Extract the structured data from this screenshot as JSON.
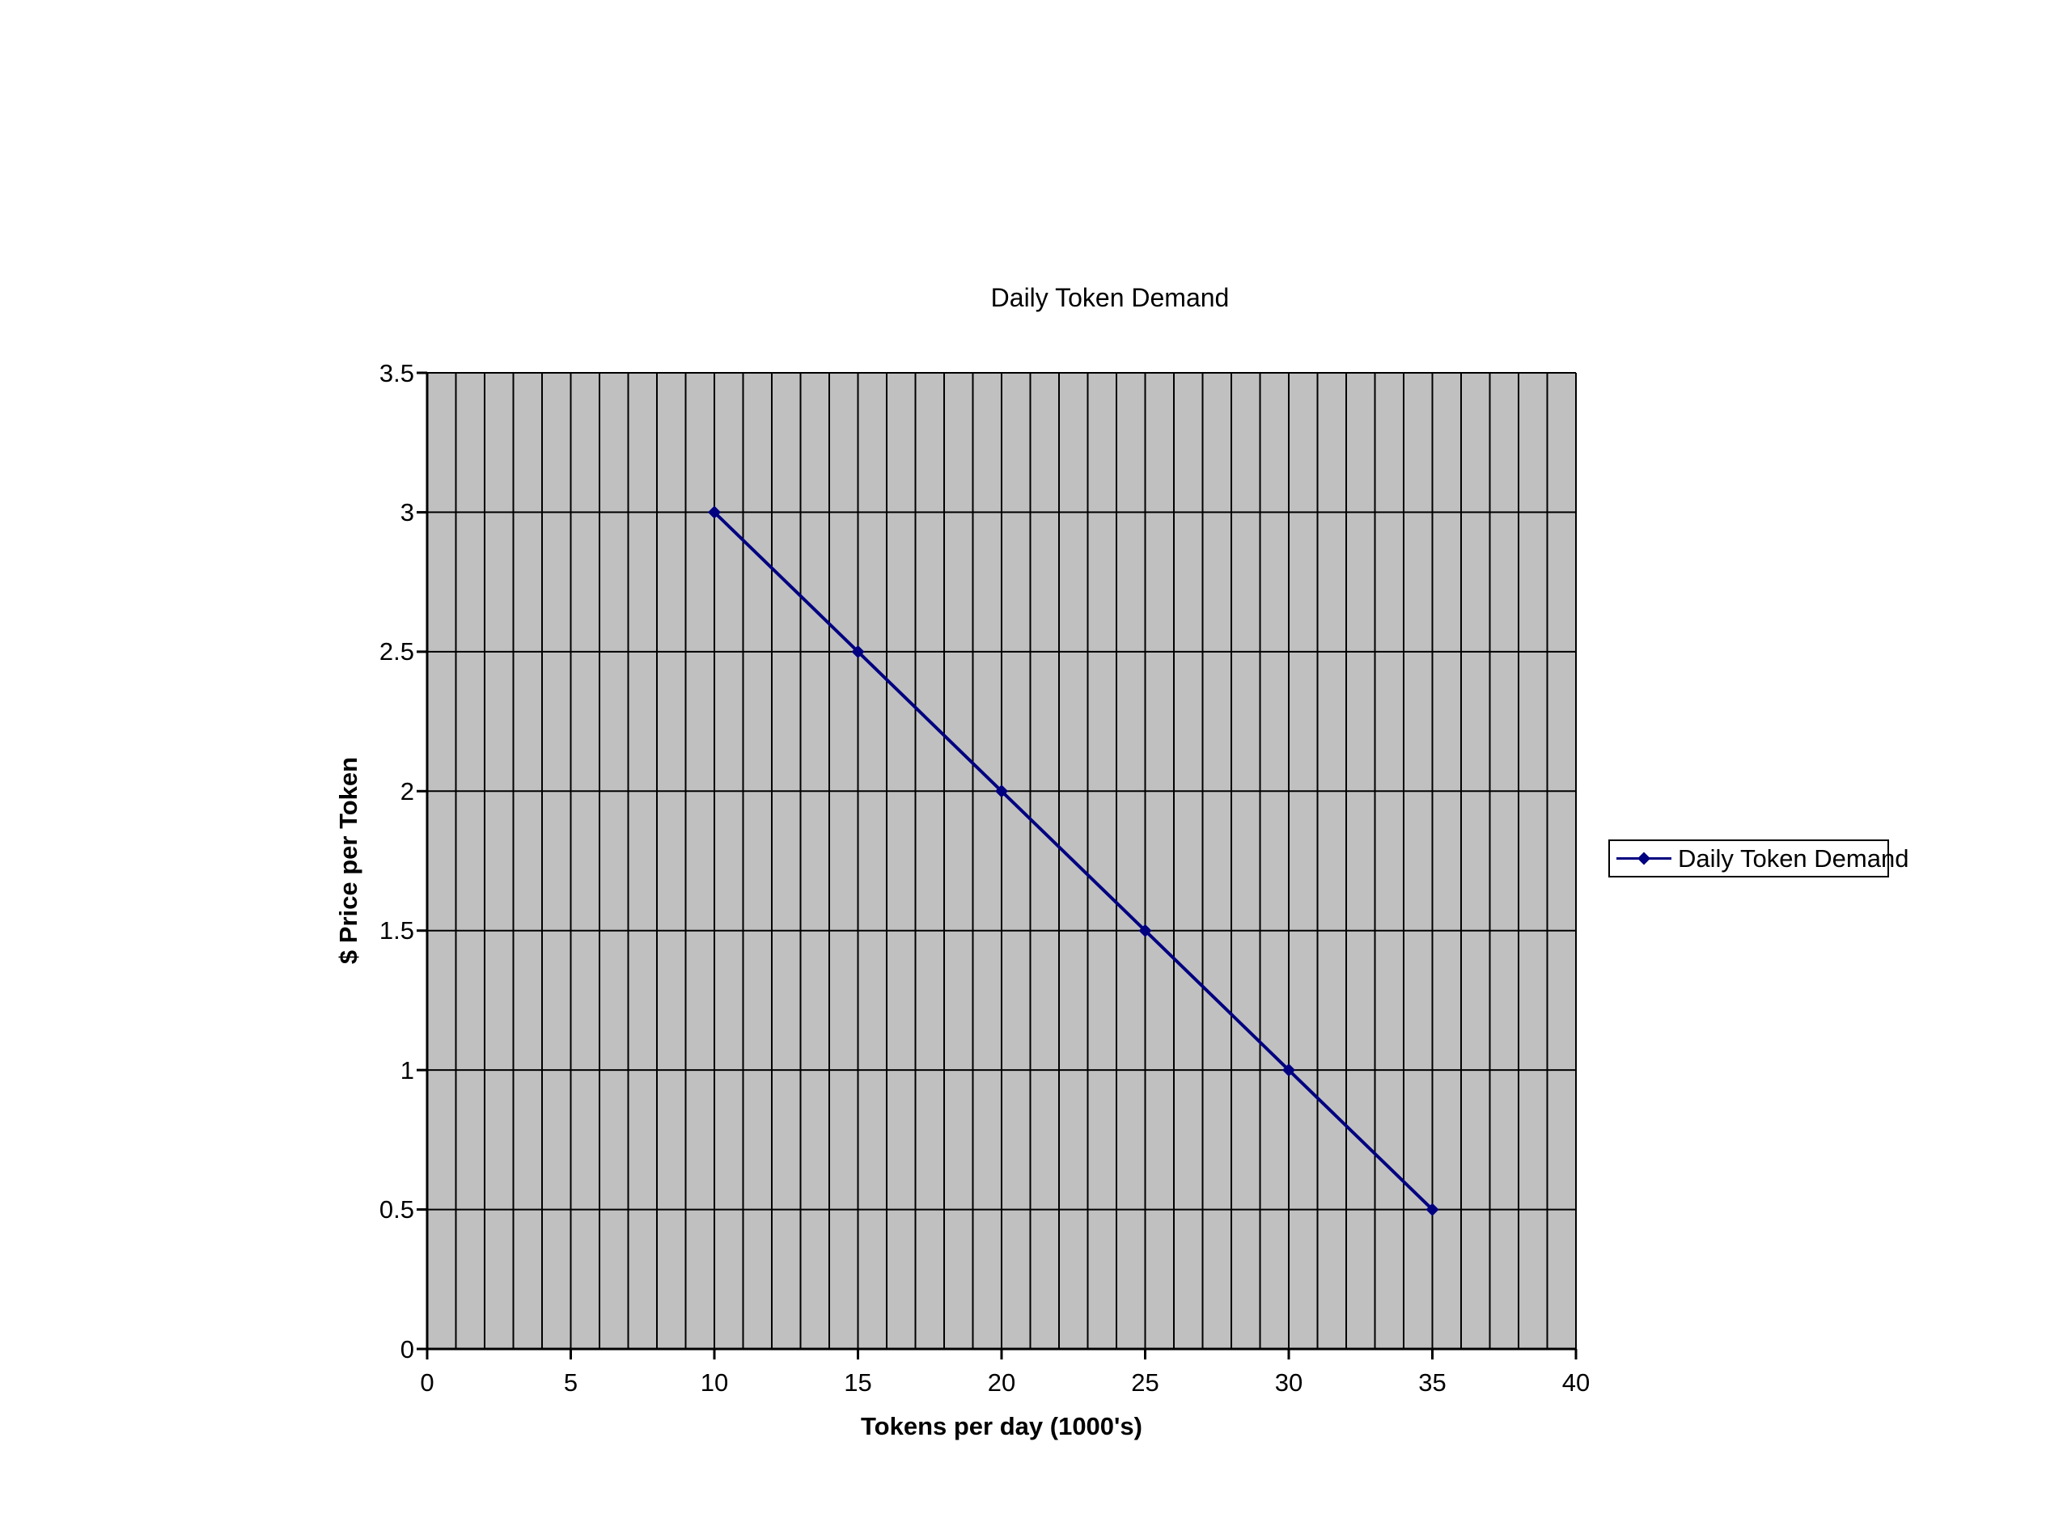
{
  "chart_data": {
    "type": "line",
    "title": "Daily Token Demand",
    "xlabel": "Tokens per day (1000's)",
    "ylabel": "$ Price per Token",
    "series": [
      {
        "name": "Daily Token Demand",
        "x": [
          10,
          15,
          20,
          25,
          30,
          35
        ],
        "y": [
          3,
          2.5,
          2,
          1.5,
          1,
          0.5
        ]
      }
    ],
    "xlim": [
      0,
      40
    ],
    "ylim": [
      0,
      3.5
    ],
    "x_tick_step": 5,
    "y_tick_step": 0.5,
    "x_minor_grid_step": 1,
    "x_ticks": [
      "0",
      "5",
      "10",
      "15",
      "20",
      "25",
      "30",
      "35",
      "40"
    ],
    "y_ticks": [
      "0",
      "0.5",
      "1",
      "1.5",
      "2",
      "2.5",
      "3",
      "3.5"
    ],
    "grid": "on",
    "legend_position": "right",
    "marker": "diamond",
    "colors": {
      "series": "#000080",
      "plot_bg": "#c0c0c0",
      "grid": "#000000",
      "axis": "#000000",
      "text": "#000000",
      "background": "#ffffff",
      "legend_border": "#000000",
      "legend_bg": "#ffffff"
    }
  }
}
